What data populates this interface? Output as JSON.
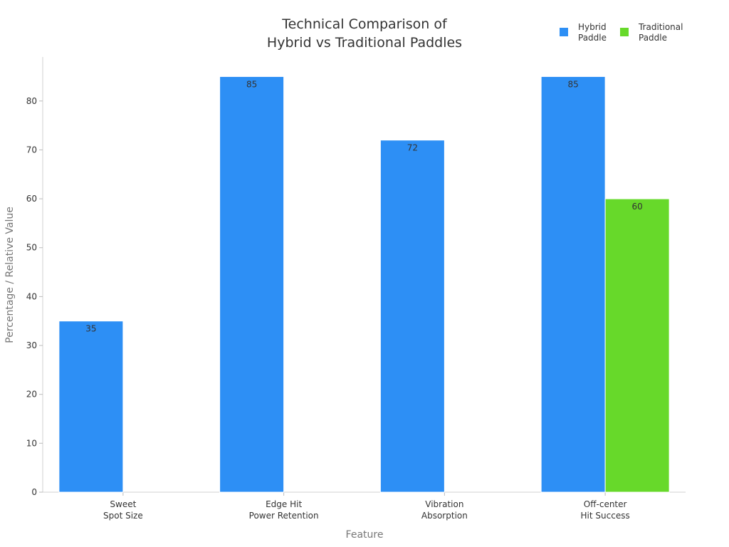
{
  "chart_data": {
    "type": "bar",
    "title": "Technical Comparison of\nHybrid vs Traditional Paddles",
    "xlabel": "Feature",
    "ylabel": "Percentage / Relative Value",
    "categories": [
      "Sweet\nSpot Size",
      "Edge Hit\nPower Retention",
      "Vibration\nAbsorption",
      "Off-center\nHit Success"
    ],
    "series": [
      {
        "name": "Hybrid\nPaddle",
        "color": "#2d8ff5",
        "values": [
          35,
          85,
          72,
          85
        ]
      },
      {
        "name": "Traditional\nPaddle",
        "color": "#67d92a",
        "values": [
          null,
          null,
          null,
          60
        ]
      }
    ],
    "ylim": [
      0,
      89
    ],
    "yticks": [
      0,
      10,
      20,
      30,
      40,
      50,
      60,
      70,
      80
    ],
    "grid": false,
    "legend": "top-right"
  }
}
